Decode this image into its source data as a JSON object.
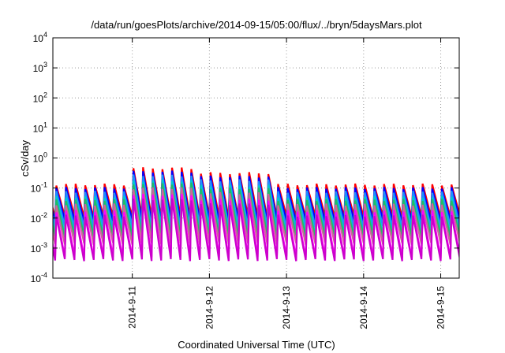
{
  "chart_data": {
    "type": "line",
    "title": "/data/run/goesPlots/archive/2014-09-15/05:00/flux/../bryn/5daysMars.plot",
    "xlabel": "Coordinated Universal Time (UTC)",
    "ylabel": "cSv/day",
    "yscale": "log",
    "ylim": [
      0.0001,
      10000
    ],
    "y_ticks": [
      {
        "base": "10",
        "exp": "-4",
        "value": 0.0001
      },
      {
        "base": "10",
        "exp": "-3",
        "value": 0.001
      },
      {
        "base": "10",
        "exp": "-2",
        "value": 0.01
      },
      {
        "base": "10",
        "exp": "-1",
        "value": 0.1
      },
      {
        "base": "10",
        "exp": "0",
        "value": 1
      },
      {
        "base": "10",
        "exp": "1",
        "value": 10
      },
      {
        "base": "10",
        "exp": "2",
        "value": 100
      },
      {
        "base": "10",
        "exp": "3",
        "value": 1000
      },
      {
        "base": "10",
        "exp": "4",
        "value": 10000
      }
    ],
    "x_ticks": [
      "2014-9-11",
      "2014-9-12",
      "2014-9-13",
      "2014-9-14",
      "2014-9-15"
    ],
    "x_range_days": [
      -1.03,
      4.24
    ],
    "grid": true,
    "cycle_days": 0.125,
    "amp_shift": [
      {
        "from": -0.1,
        "to": 0.85,
        "factor": 3.5
      },
      {
        "from": 0.85,
        "to": 1.8,
        "factor": 2.4
      }
    ],
    "series": [
      {
        "color": "#ff0000",
        "peak": 0.13,
        "trough": 0.011
      },
      {
        "color": "#0000ff",
        "peak": 0.1,
        "trough": 0.008
      },
      {
        "color": "#1e90ff",
        "peak": 0.075,
        "trough": 0.005
      },
      {
        "color": "#00cccc",
        "peak": 0.05,
        "trough": 0.003
      },
      {
        "color": "#22bb66",
        "peak": 0.04,
        "trough": 0.0024
      },
      {
        "color": "#cc6699",
        "peak": 0.028,
        "trough": 0.0014
      },
      {
        "color": "#ff00ff",
        "peak": 0.017,
        "trough": 0.0005
      },
      {
        "color": "#cc00cc",
        "peak": 0.012,
        "trough": 0.0004
      }
    ]
  }
}
